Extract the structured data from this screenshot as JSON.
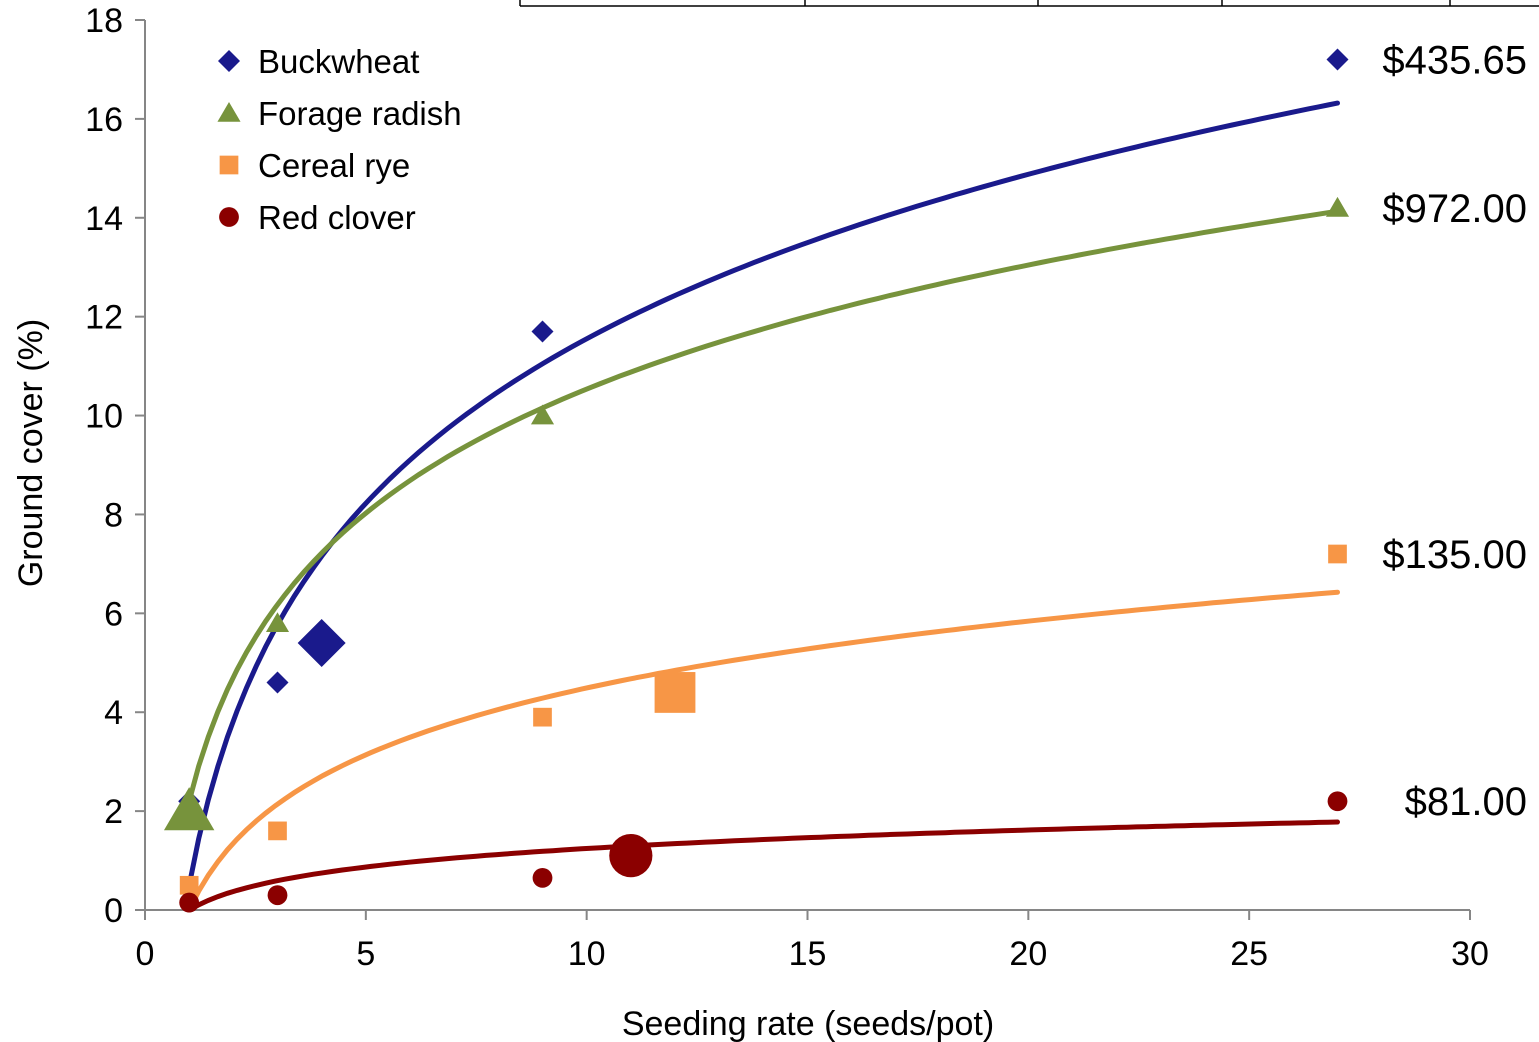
{
  "chart_data": {
    "type": "scatter",
    "title": "",
    "xlabel": "Seeding rate (seeds/pot)",
    "ylabel": "Ground cover (%)",
    "xlim": [
      0,
      30
    ],
    "ylim": [
      0,
      18
    ],
    "x_ticks": [
      "0",
      "5",
      "10",
      "15",
      "20",
      "25",
      "30"
    ],
    "y_ticks": [
      "0",
      "2",
      "4",
      "6",
      "8",
      "10",
      "12",
      "14",
      "16",
      "18"
    ],
    "grid": false,
    "legend_position": "top-left",
    "trendline": "logarithmic",
    "series": [
      {
        "name": "Buckwheat",
        "marker": "diamond",
        "color": "#1a1a8c",
        "points": [
          [
            1,
            2.2
          ],
          [
            3,
            4.6
          ],
          [
            9,
            11.7
          ],
          [
            27,
            17.2
          ]
        ],
        "highlight": [
          4,
          5.4
        ],
        "trend_range": [
          1,
          27
        ],
        "trend": {
          "a": 4.8,
          "b": 0.5
        },
        "price_label": "$435.65"
      },
      {
        "name": "Forage radish",
        "marker": "triangle",
        "color": "#77933c",
        "points": [
          [
            1,
            2.2
          ],
          [
            3,
            5.8
          ],
          [
            9,
            10.0
          ],
          [
            27,
            14.2
          ]
        ],
        "highlight": [
          1,
          2.0
        ],
        "trend_range": [
          1,
          27
        ],
        "trend": {
          "a": 3.62,
          "b": 2.2
        },
        "price_label": "$972.00"
      },
      {
        "name": "Cereal rye",
        "marker": "square",
        "color": "#f79646",
        "points": [
          [
            1,
            0.5
          ],
          [
            3,
            1.6
          ],
          [
            9,
            3.9
          ],
          [
            27,
            7.2
          ]
        ],
        "highlight": [
          12,
          4.4
        ],
        "trend_range": [
          1,
          27
        ],
        "trend": {
          "a": 1.95,
          "b": 0.0
        },
        "price_label": "$135.00"
      },
      {
        "name": "Red clover",
        "marker": "circle",
        "color": "#8b0000",
        "points": [
          [
            1,
            0.15
          ],
          [
            3,
            0.3
          ],
          [
            9,
            0.65
          ],
          [
            27,
            2.2
          ]
        ],
        "highlight": [
          11,
          1.1
        ],
        "trend_range": [
          1,
          27
        ],
        "trend": {
          "a": 0.54,
          "b": 0.0
        },
        "price_label": "$81.00"
      }
    ]
  }
}
